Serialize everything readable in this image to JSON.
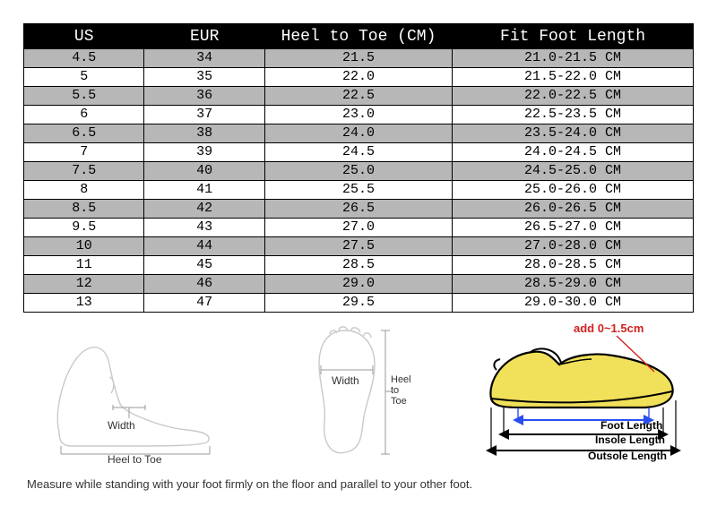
{
  "table": {
    "columns": [
      "US",
      "EUR",
      "Heel to Toe (CM)",
      "Fit Foot Length"
    ],
    "rows": [
      [
        "4.5",
        "34",
        "21.5",
        "21.0-21.5 CM"
      ],
      [
        "5",
        "35",
        "22.0",
        "21.5-22.0 CM"
      ],
      [
        "5.5",
        "36",
        "22.5",
        "22.0-22.5 CM"
      ],
      [
        "6",
        "37",
        "23.0",
        "22.5-23.5 CM"
      ],
      [
        "6.5",
        "38",
        "24.0",
        "23.5-24.0 CM"
      ],
      [
        "7",
        "39",
        "24.5",
        "24.0-24.5 CM"
      ],
      [
        "7.5",
        "40",
        "25.0",
        "24.5-25.0 CM"
      ],
      [
        "8",
        "41",
        "25.5",
        "25.0-26.0 CM"
      ],
      [
        "8.5",
        "42",
        "26.5",
        "26.0-26.5 CM"
      ],
      [
        "9.5",
        "43",
        "27.0",
        "26.5-27.0 CM"
      ],
      [
        "10",
        "44",
        "27.5",
        "27.0-28.0 CM"
      ],
      [
        "11",
        "45",
        "28.5",
        "28.0-28.5 CM"
      ],
      [
        "12",
        "46",
        "29.0",
        "28.5-29.0 CM"
      ],
      [
        "13",
        "47",
        "29.5",
        "29.0-30.0 CM"
      ]
    ],
    "header_bg": "#000000",
    "header_fg": "#ffffff",
    "row_alt_bg": "#b7b7b7",
    "row_bg": "#ffffff",
    "border_color": "#000000",
    "font_family": "Courier New",
    "header_fontsize": 18,
    "cell_fontsize": 15,
    "col_widths_pct": [
      18,
      18,
      28,
      36
    ]
  },
  "diagram_labels": {
    "width": "Width",
    "heel_to_toe": "Heel to Toe",
    "add_cm": "add 0~1.5cm",
    "foot_length": "Foot Length",
    "insole_length": "Insole Length",
    "outsole_length": "Outsole Length"
  },
  "diagram_colors": {
    "outline": "#c9c9c9",
    "measure_line": "#9a9a9a",
    "shoe_outline": "#000000",
    "shoe_fill": "#f0e05a",
    "arrow_blue": "#2a4df0",
    "arrow_black": "#000000",
    "red_text": "#d2221f",
    "label_text": "#333333"
  },
  "note": "Measure while standing with your foot firmly on the floor and parallel to your other foot."
}
